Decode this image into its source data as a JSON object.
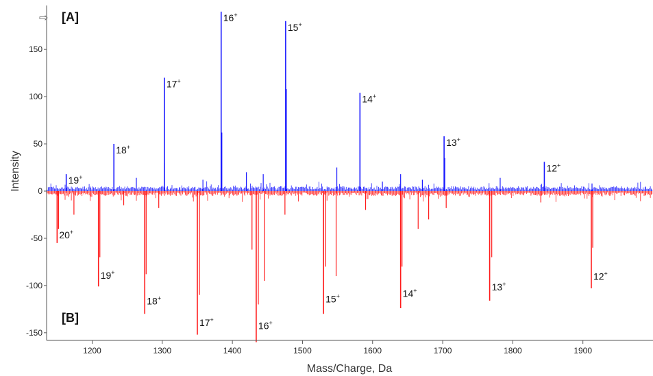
{
  "chart_data": {
    "type": "line",
    "xlabel": "Mass/Charge, Da",
    "ylabel": "Intensity",
    "xlim": [
      1135,
      2000
    ],
    "ylim": [
      -160,
      190
    ],
    "x_ticks": [
      1200,
      1300,
      1400,
      1500,
      1600,
      1700,
      1800,
      1900
    ],
    "y_ticks": [
      150,
      100,
      50,
      0,
      -50,
      -100,
      -150
    ],
    "grid": false,
    "panels": [
      {
        "label": "[A]",
        "color": "#1a1aff",
        "direction": "up"
      },
      {
        "label": "[B]",
        "color": "#ff1a1a",
        "direction": "down"
      }
    ],
    "series": [
      {
        "color": "#1a1aff",
        "peaks": [
          {
            "x": 1163,
            "y": 18,
            "label": "19",
            "charge_sign": "+"
          },
          {
            "x": 1231,
            "y": 50,
            "label": "18",
            "charge_sign": "+"
          },
          {
            "x": 1303,
            "y": 120,
            "label": "17",
            "charge_sign": "+"
          },
          {
            "x": 1384,
            "y": 190,
            "label": "16",
            "charge_sign": "+"
          },
          {
            "x": 1476,
            "y": 180,
            "label": "15",
            "charge_sign": "+"
          },
          {
            "x": 1582,
            "y": 104,
            "label": "14",
            "charge_sign": "+"
          },
          {
            "x": 1702,
            "y": 58,
            "label": "13",
            "charge_sign": "+"
          },
          {
            "x": 1845,
            "y": 31,
            "label": "12",
            "charge_sign": "+"
          }
        ],
        "minor_peaks": [
          {
            "x": 1385,
            "y": 62
          },
          {
            "x": 1477,
            "y": 108
          },
          {
            "x": 1582,
            "y": 65
          },
          {
            "x": 1703,
            "y": 35
          },
          {
            "x": 1303,
            "y": 30
          },
          {
            "x": 1263,
            "y": 14
          },
          {
            "x": 1420,
            "y": 20
          },
          {
            "x": 1444,
            "y": 18
          },
          {
            "x": 1549,
            "y": 25
          },
          {
            "x": 1640,
            "y": 18
          },
          {
            "x": 1782,
            "y": 14
          },
          {
            "x": 1614,
            "y": 10
          },
          {
            "x": 1358,
            "y": 12
          },
          {
            "x": 1913,
            "y": 8
          },
          {
            "x": 1671,
            "y": 12
          }
        ]
      },
      {
        "color": "#ff1a1a",
        "peaks": [
          {
            "x": 1150,
            "y": -55,
            "label": "20",
            "charge_sign": "+"
          },
          {
            "x": 1209,
            "y": -101,
            "label": "19",
            "charge_sign": "+"
          },
          {
            "x": 1275,
            "y": -130,
            "label": "18",
            "charge_sign": "+"
          },
          {
            "x": 1350,
            "y": -152,
            "label": "17",
            "charge_sign": "+"
          },
          {
            "x": 1434,
            "y": -160,
            "label": "16",
            "charge_sign": "+"
          },
          {
            "x": 1530,
            "y": -130,
            "label": "15",
            "charge_sign": "+"
          },
          {
            "x": 1640,
            "y": -124,
            "label": "14",
            "charge_sign": "+"
          },
          {
            "x": 1767,
            "y": -116,
            "label": "13",
            "charge_sign": "+"
          },
          {
            "x": 1912,
            "y": -103,
            "label": "12",
            "charge_sign": "+"
          }
        ],
        "minor_peaks": [
          {
            "x": 1152,
            "y": -40
          },
          {
            "x": 1211,
            "y": -70
          },
          {
            "x": 1277,
            "y": -88
          },
          {
            "x": 1353,
            "y": -110
          },
          {
            "x": 1437,
            "y": -120
          },
          {
            "x": 1446,
            "y": -95
          },
          {
            "x": 1428,
            "y": -62
          },
          {
            "x": 1548,
            "y": -90
          },
          {
            "x": 1533,
            "y": -80
          },
          {
            "x": 1642,
            "y": -80
          },
          {
            "x": 1665,
            "y": -40
          },
          {
            "x": 1770,
            "y": -70
          },
          {
            "x": 1914,
            "y": -60
          },
          {
            "x": 1174,
            "y": -25
          },
          {
            "x": 1295,
            "y": -18
          },
          {
            "x": 1245,
            "y": -15
          },
          {
            "x": 1475,
            "y": -25
          },
          {
            "x": 1590,
            "y": -20
          },
          {
            "x": 1705,
            "y": -18
          },
          {
            "x": 1840,
            "y": -12
          },
          {
            "x": 1680,
            "y": -30
          }
        ]
      }
    ]
  }
}
